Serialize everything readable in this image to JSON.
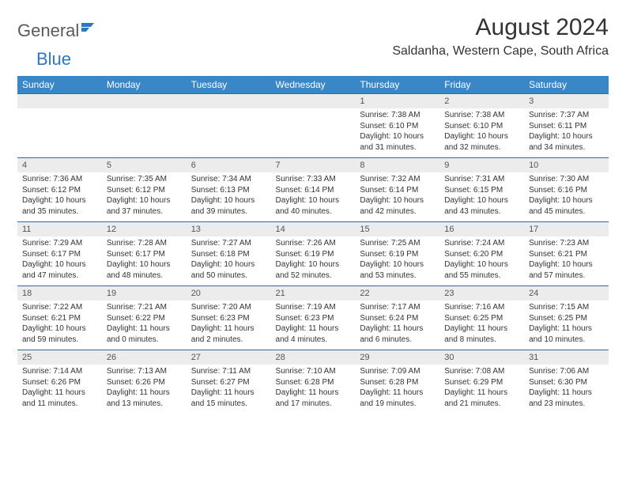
{
  "logo": {
    "general": "General",
    "blue": "Blue",
    "icon_color": "#2f78bb"
  },
  "title": "August 2024",
  "location": "Saldanha, Western Cape, South Africa",
  "colors": {
    "header_bg": "#3a87c7",
    "header_text": "#ffffff",
    "daynum_bg": "#ececec",
    "row_border": "#2f6aa0",
    "body_text": "#333333"
  },
  "weekdays": [
    "Sunday",
    "Monday",
    "Tuesday",
    "Wednesday",
    "Thursday",
    "Friday",
    "Saturday"
  ],
  "weeks": [
    [
      {
        "num": "",
        "sunrise": "",
        "sunset": "",
        "daylight": ""
      },
      {
        "num": "",
        "sunrise": "",
        "sunset": "",
        "daylight": ""
      },
      {
        "num": "",
        "sunrise": "",
        "sunset": "",
        "daylight": ""
      },
      {
        "num": "",
        "sunrise": "",
        "sunset": "",
        "daylight": ""
      },
      {
        "num": "1",
        "sunrise": "Sunrise: 7:38 AM",
        "sunset": "Sunset: 6:10 PM",
        "daylight": "Daylight: 10 hours and 31 minutes."
      },
      {
        "num": "2",
        "sunrise": "Sunrise: 7:38 AM",
        "sunset": "Sunset: 6:10 PM",
        "daylight": "Daylight: 10 hours and 32 minutes."
      },
      {
        "num": "3",
        "sunrise": "Sunrise: 7:37 AM",
        "sunset": "Sunset: 6:11 PM",
        "daylight": "Daylight: 10 hours and 34 minutes."
      }
    ],
    [
      {
        "num": "4",
        "sunrise": "Sunrise: 7:36 AM",
        "sunset": "Sunset: 6:12 PM",
        "daylight": "Daylight: 10 hours and 35 minutes."
      },
      {
        "num": "5",
        "sunrise": "Sunrise: 7:35 AM",
        "sunset": "Sunset: 6:12 PM",
        "daylight": "Daylight: 10 hours and 37 minutes."
      },
      {
        "num": "6",
        "sunrise": "Sunrise: 7:34 AM",
        "sunset": "Sunset: 6:13 PM",
        "daylight": "Daylight: 10 hours and 39 minutes."
      },
      {
        "num": "7",
        "sunrise": "Sunrise: 7:33 AM",
        "sunset": "Sunset: 6:14 PM",
        "daylight": "Daylight: 10 hours and 40 minutes."
      },
      {
        "num": "8",
        "sunrise": "Sunrise: 7:32 AM",
        "sunset": "Sunset: 6:14 PM",
        "daylight": "Daylight: 10 hours and 42 minutes."
      },
      {
        "num": "9",
        "sunrise": "Sunrise: 7:31 AM",
        "sunset": "Sunset: 6:15 PM",
        "daylight": "Daylight: 10 hours and 43 minutes."
      },
      {
        "num": "10",
        "sunrise": "Sunrise: 7:30 AM",
        "sunset": "Sunset: 6:16 PM",
        "daylight": "Daylight: 10 hours and 45 minutes."
      }
    ],
    [
      {
        "num": "11",
        "sunrise": "Sunrise: 7:29 AM",
        "sunset": "Sunset: 6:17 PM",
        "daylight": "Daylight: 10 hours and 47 minutes."
      },
      {
        "num": "12",
        "sunrise": "Sunrise: 7:28 AM",
        "sunset": "Sunset: 6:17 PM",
        "daylight": "Daylight: 10 hours and 48 minutes."
      },
      {
        "num": "13",
        "sunrise": "Sunrise: 7:27 AM",
        "sunset": "Sunset: 6:18 PM",
        "daylight": "Daylight: 10 hours and 50 minutes."
      },
      {
        "num": "14",
        "sunrise": "Sunrise: 7:26 AM",
        "sunset": "Sunset: 6:19 PM",
        "daylight": "Daylight: 10 hours and 52 minutes."
      },
      {
        "num": "15",
        "sunrise": "Sunrise: 7:25 AM",
        "sunset": "Sunset: 6:19 PM",
        "daylight": "Daylight: 10 hours and 53 minutes."
      },
      {
        "num": "16",
        "sunrise": "Sunrise: 7:24 AM",
        "sunset": "Sunset: 6:20 PM",
        "daylight": "Daylight: 10 hours and 55 minutes."
      },
      {
        "num": "17",
        "sunrise": "Sunrise: 7:23 AM",
        "sunset": "Sunset: 6:21 PM",
        "daylight": "Daylight: 10 hours and 57 minutes."
      }
    ],
    [
      {
        "num": "18",
        "sunrise": "Sunrise: 7:22 AM",
        "sunset": "Sunset: 6:21 PM",
        "daylight": "Daylight: 10 hours and 59 minutes."
      },
      {
        "num": "19",
        "sunrise": "Sunrise: 7:21 AM",
        "sunset": "Sunset: 6:22 PM",
        "daylight": "Daylight: 11 hours and 0 minutes."
      },
      {
        "num": "20",
        "sunrise": "Sunrise: 7:20 AM",
        "sunset": "Sunset: 6:23 PM",
        "daylight": "Daylight: 11 hours and 2 minutes."
      },
      {
        "num": "21",
        "sunrise": "Sunrise: 7:19 AM",
        "sunset": "Sunset: 6:23 PM",
        "daylight": "Daylight: 11 hours and 4 minutes."
      },
      {
        "num": "22",
        "sunrise": "Sunrise: 7:17 AM",
        "sunset": "Sunset: 6:24 PM",
        "daylight": "Daylight: 11 hours and 6 minutes."
      },
      {
        "num": "23",
        "sunrise": "Sunrise: 7:16 AM",
        "sunset": "Sunset: 6:25 PM",
        "daylight": "Daylight: 11 hours and 8 minutes."
      },
      {
        "num": "24",
        "sunrise": "Sunrise: 7:15 AM",
        "sunset": "Sunset: 6:25 PM",
        "daylight": "Daylight: 11 hours and 10 minutes."
      }
    ],
    [
      {
        "num": "25",
        "sunrise": "Sunrise: 7:14 AM",
        "sunset": "Sunset: 6:26 PM",
        "daylight": "Daylight: 11 hours and 11 minutes."
      },
      {
        "num": "26",
        "sunrise": "Sunrise: 7:13 AM",
        "sunset": "Sunset: 6:26 PM",
        "daylight": "Daylight: 11 hours and 13 minutes."
      },
      {
        "num": "27",
        "sunrise": "Sunrise: 7:11 AM",
        "sunset": "Sunset: 6:27 PM",
        "daylight": "Daylight: 11 hours and 15 minutes."
      },
      {
        "num": "28",
        "sunrise": "Sunrise: 7:10 AM",
        "sunset": "Sunset: 6:28 PM",
        "daylight": "Daylight: 11 hours and 17 minutes."
      },
      {
        "num": "29",
        "sunrise": "Sunrise: 7:09 AM",
        "sunset": "Sunset: 6:28 PM",
        "daylight": "Daylight: 11 hours and 19 minutes."
      },
      {
        "num": "30",
        "sunrise": "Sunrise: 7:08 AM",
        "sunset": "Sunset: 6:29 PM",
        "daylight": "Daylight: 11 hours and 21 minutes."
      },
      {
        "num": "31",
        "sunrise": "Sunrise: 7:06 AM",
        "sunset": "Sunset: 6:30 PM",
        "daylight": "Daylight: 11 hours and 23 minutes."
      }
    ]
  ]
}
